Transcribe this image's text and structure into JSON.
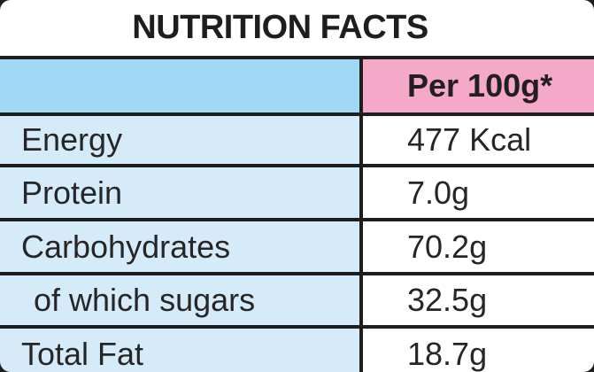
{
  "title": "NUTRITION FACTS",
  "table": {
    "header": {
      "label": "",
      "value_column": "Per 100g*"
    },
    "rows": [
      {
        "label": "Energy",
        "value": "477 Kcal",
        "indent": false
      },
      {
        "label": "Protein",
        "value": "7.0g",
        "indent": false
      },
      {
        "label": "Carbohydrates",
        "value": "70.2g",
        "indent": false
      },
      {
        "label": "of which sugars",
        "value": "32.5g",
        "indent": true
      },
      {
        "label": "Total Fat",
        "value": "18.7g",
        "indent": false
      }
    ]
  },
  "colors": {
    "header_blue": "#a0d8f6",
    "row_blue": "#d6ebfa",
    "header_pink": "#f4a9c8",
    "rule_line": "#1e1e1e",
    "text": "#262626",
    "background": "#ffffff"
  }
}
